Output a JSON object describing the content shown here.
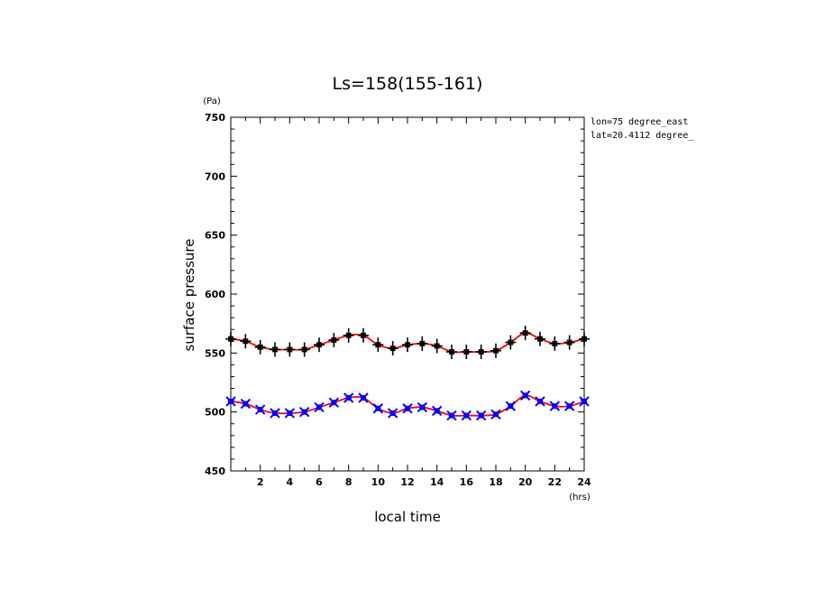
{
  "chart_data": {
    "type": "line",
    "title": "Ls=158(155-161)",
    "xlabel": "local time",
    "ylabel": "surface pressure",
    "x_unit": "(hrs)",
    "y_unit": "(Pa)",
    "xlim": [
      0,
      24
    ],
    "ylim": [
      450,
      750
    ],
    "x_ticks": [
      2,
      4,
      6,
      8,
      10,
      12,
      14,
      16,
      18,
      20,
      22,
      24
    ],
    "y_ticks": [
      450,
      500,
      550,
      600,
      650,
      700,
      750
    ],
    "grid": false,
    "annotations": [
      "lon=75 degree_east",
      "lat=20.4112 degree_"
    ],
    "x": [
      0,
      1,
      2,
      3,
      4,
      5,
      6,
      7,
      8,
      9,
      10,
      11,
      12,
      13,
      14,
      15,
      16,
      17,
      18,
      19,
      20,
      21,
      22,
      23,
      24
    ],
    "series": [
      {
        "style": "black-plus-markers",
        "color": "#000000",
        "line_color": "#ff0000",
        "marker": "plus",
        "values": [
          562,
          560,
          555,
          553,
          553,
          553,
          557,
          561,
          565,
          565,
          557,
          554,
          557,
          558,
          556,
          551,
          551,
          551,
          552,
          559,
          567,
          562,
          558,
          559,
          562
        ]
      },
      {
        "style": "blue-x-markers",
        "color": "#0000ff",
        "line_color": "#ff0000",
        "marker": "x",
        "values": [
          509,
          507,
          502,
          499,
          499,
          500,
          504,
          508,
          512,
          512,
          503,
          499,
          503,
          504,
          501,
          497,
          497,
          497,
          498,
          505,
          514,
          509,
          505,
          505,
          509
        ]
      }
    ]
  }
}
